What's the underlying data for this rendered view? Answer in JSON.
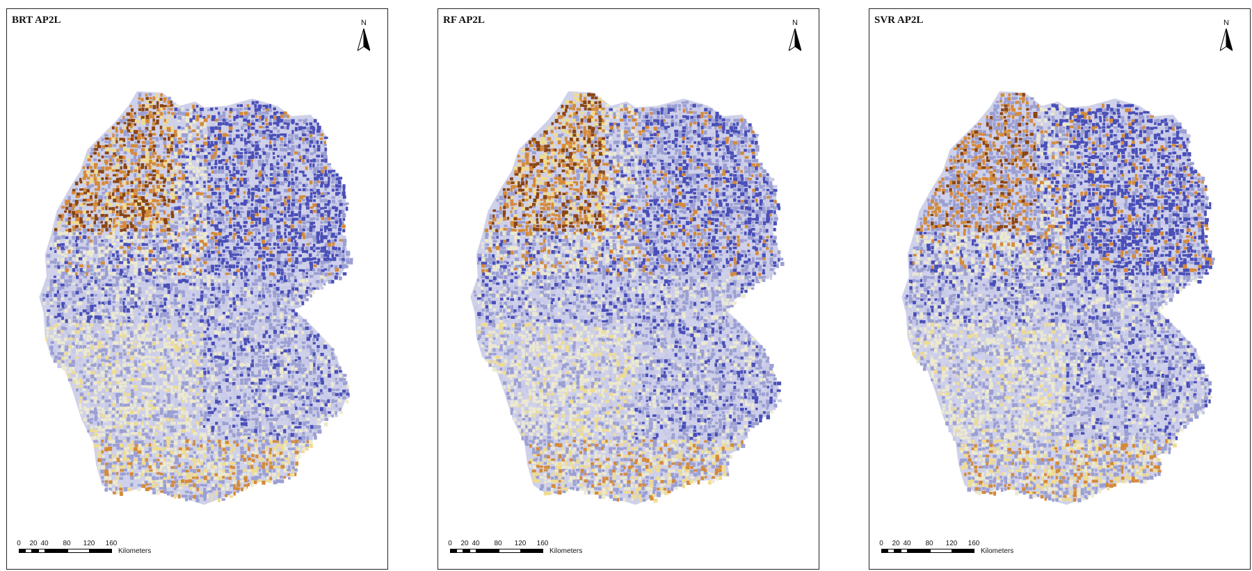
{
  "panels": [
    {
      "title": "BRT AP2L",
      "north": "N",
      "scale": {
        "ticks": [
          "0",
          "20",
          "40",
          "80",
          "120",
          "160"
        ],
        "unit": "Kilometers"
      }
    },
    {
      "title": "RF AP2L",
      "north": "N",
      "scale": {
        "ticks": [
          "0",
          "20",
          "40",
          "80",
          "120",
          "160"
        ],
        "unit": "Kilometers"
      }
    },
    {
      "title": "SVR AP2L",
      "north": "N",
      "scale": {
        "ticks": [
          "0",
          "20",
          "40",
          "80",
          "120",
          "160"
        ],
        "unit": "Kilometers"
      }
    }
  ],
  "colors": {
    "high_blue": "#4a4fb8",
    "mid_lavender": "#9b9fd2",
    "light_lavender": "#c7c9e6",
    "cream": "#ece9cf",
    "yellow": "#f0dc8e",
    "orange": "#d48a3a",
    "brown": "#8b4513"
  },
  "icons": [
    "north-arrow-icon"
  ]
}
